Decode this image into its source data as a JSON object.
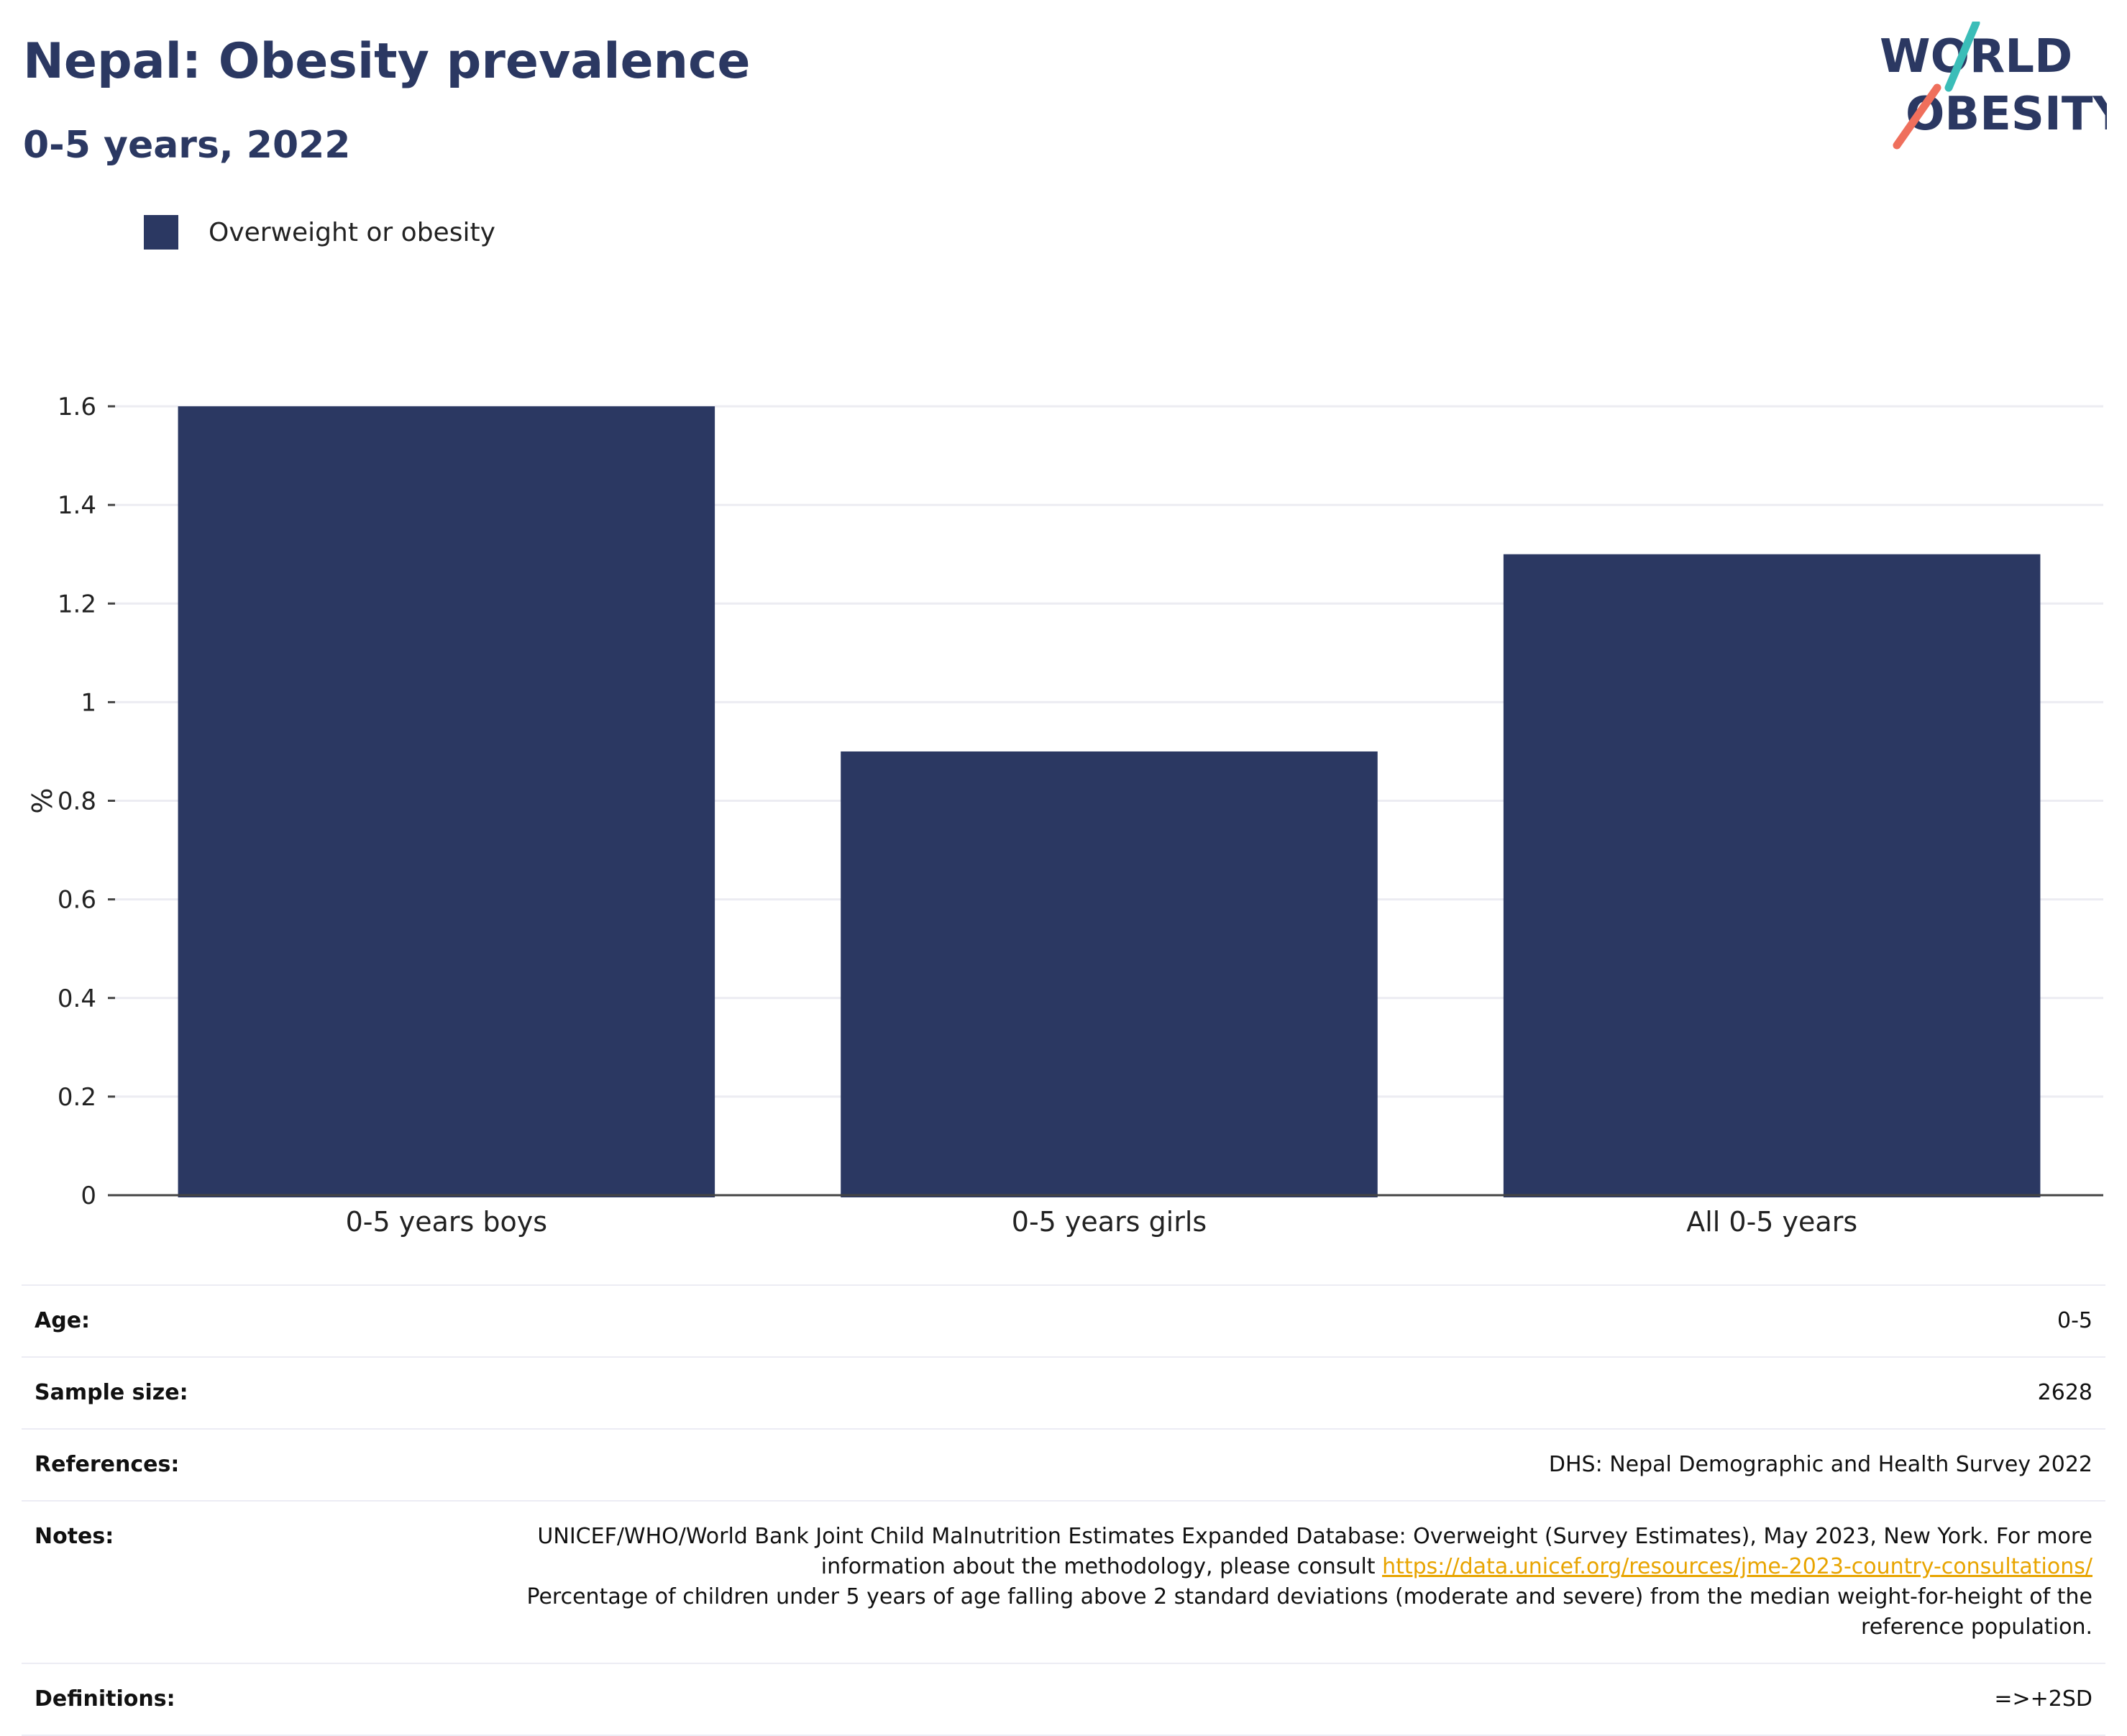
{
  "header": {
    "title": "Nepal: Obesity prevalence",
    "subtitle": "0-5 years, 2022"
  },
  "logo": {
    "line1": "WORLD",
    "line2": "OBESITY",
    "icon": "world-obesity-logo"
  },
  "colors": {
    "bar": "#2b3862",
    "title": "#2b3862",
    "link": "#e8a400",
    "logo_teal": "#3bbdb8",
    "logo_coral": "#ef6f5c"
  },
  "chart_data": {
    "type": "bar",
    "categories": [
      "0-5 years boys",
      "0-5 years girls",
      "All 0-5 years"
    ],
    "series": [
      {
        "name": "Overweight or obesity",
        "values": [
          1.6,
          0.9,
          1.3
        ]
      }
    ],
    "ylabel": "%",
    "ylim": [
      0,
      1.6
    ],
    "yticks": [
      0,
      0.2,
      0.4,
      0.6,
      0.8,
      1,
      1.2,
      1.4,
      1.6
    ],
    "ytick_labels": [
      "0",
      "0.2",
      "0.4",
      "0.6",
      "0.8",
      "1",
      "1.2",
      "1.4",
      "1.6"
    ],
    "grid": true,
    "legend_position": "top-left"
  },
  "meta": {
    "age": {
      "label": "Age:",
      "value": "0-5"
    },
    "sample_size": {
      "label": "Sample size:",
      "value": "2628"
    },
    "references": {
      "label": "References:",
      "value": "DHS: Nepal Demographic and Health Survey 2022"
    },
    "notes": {
      "label": "Notes:",
      "text1": "UNICEF/WHO/World Bank Joint Child Malnutrition Estimates Expanded Database: Overweight (Survey Estimates), May 2023, New York. For more information about the methodology, please consult ",
      "link": "https://data.unicef.org/resources/jme-2023-country-consultations/",
      "text2": "Percentage of children under 5 years of age falling above 2 standard deviations (moderate and severe) from the median weight-for-height of the reference population."
    },
    "definitions": {
      "label": "Definitions:",
      "value": "=>+2SD"
    }
  }
}
